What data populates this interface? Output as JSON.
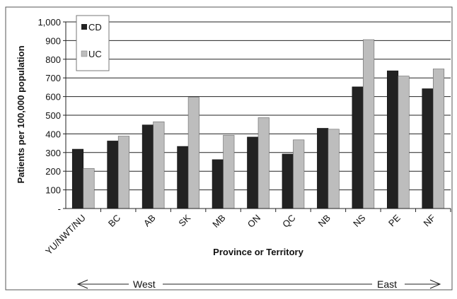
{
  "chart_data": {
    "type": "bar",
    "categories": [
      "YU/NWT/NU",
      "BC",
      "AB",
      "SK",
      "MB",
      "ON",
      "QC",
      "NB",
      "NS",
      "PE",
      "NF"
    ],
    "series": [
      {
        "name": "CD",
        "values": [
          318,
          362,
          448,
          333,
          262,
          383,
          292,
          430,
          652,
          738,
          642
        ],
        "color": "#222222"
      },
      {
        "name": "UC",
        "values": [
          215,
          388,
          465,
          596,
          393,
          487,
          368,
          425,
          905,
          710,
          748
        ],
        "color": "#bdbdbd"
      }
    ],
    "xlabel": "Province or Territory",
    "ylabel": "Patients per 100,000 population",
    "ylim": [
      0,
      1000
    ],
    "yticks": [
      {
        "value": 0,
        "label": "-"
      },
      {
        "value": 100,
        "label": "100"
      },
      {
        "value": 200,
        "label": "200"
      },
      {
        "value": 300,
        "label": "300"
      },
      {
        "value": 400,
        "label": "400"
      },
      {
        "value": 500,
        "label": "500"
      },
      {
        "value": 600,
        "label": "600"
      },
      {
        "value": 700,
        "label": "700"
      },
      {
        "value": 800,
        "label": "800"
      },
      {
        "value": 900,
        "label": "900"
      },
      {
        "value": 1000,
        "label": "1,000"
      }
    ],
    "grid": true,
    "legend": {
      "position": "top-left"
    },
    "direction": {
      "left_label": "West",
      "right_label": "East"
    }
  }
}
